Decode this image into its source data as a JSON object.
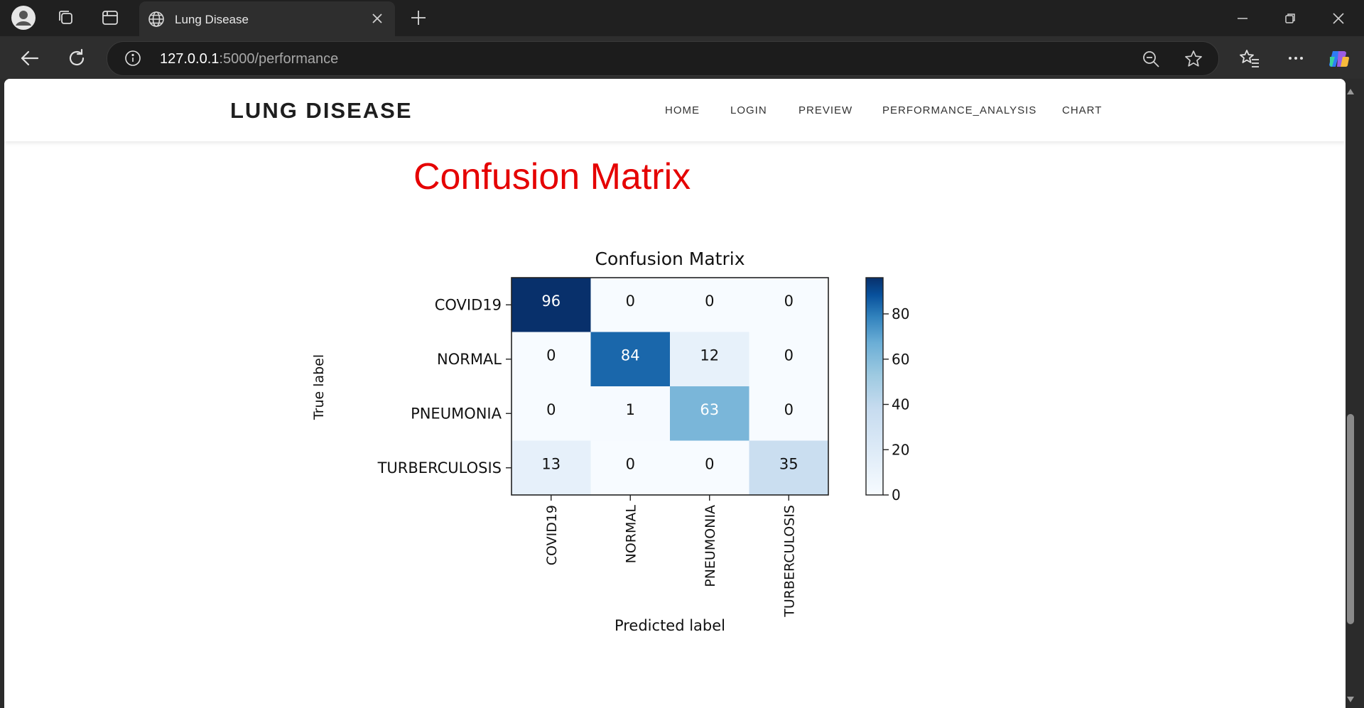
{
  "browser": {
    "tab_title": "Lung Disease",
    "url_host": "127.0.0.1",
    "url_path": ":5000/performance"
  },
  "navbar": {
    "brand": "LUNG DISEASE",
    "links": [
      "HOME",
      "LOGIN",
      "PREVIEW",
      "PERFORMANCE_ANALYSIS",
      "CHART"
    ]
  },
  "page": {
    "heading": "Confusion Matrix"
  },
  "chart_data": {
    "type": "heatmap",
    "title": "Confusion Matrix",
    "xlabel": "Predicted label",
    "ylabel": "True label",
    "row_labels": [
      "COVID19",
      "NORMAL",
      "PNEUMONIA",
      "TURBERCULOSIS"
    ],
    "col_labels": [
      "COVID19",
      "NORMAL",
      "PNEUMONIA",
      "TURBERCULOSIS"
    ],
    "matrix": [
      [
        96,
        0,
        0,
        0
      ],
      [
        0,
        84,
        12,
        0
      ],
      [
        0,
        1,
        63,
        0
      ],
      [
        13,
        0,
        0,
        35
      ]
    ],
    "colormap": "Blues",
    "colorbar_range": [
      0,
      96
    ],
    "colorbar_ticks": [
      0,
      20,
      40,
      60,
      80
    ]
  }
}
